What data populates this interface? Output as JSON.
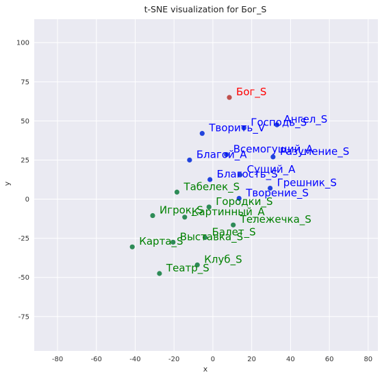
{
  "chart_data": {
    "type": "scatter",
    "title": "t-SNE visualization for Бог_S",
    "xlabel": "x",
    "ylabel": "y",
    "xlim": [
      -92,
      85
    ],
    "ylim": [
      -97,
      115
    ],
    "xticks": [
      -80,
      -60,
      -40,
      -20,
      0,
      20,
      40,
      60,
      80
    ],
    "yticks": [
      -75,
      -50,
      -25,
      0,
      25,
      50,
      75,
      100
    ],
    "grid": true,
    "colors": {
      "target": "#c0504d",
      "target_text": "#ff0000",
      "blue": "#2244dd",
      "blue_text": "#0000ff",
      "green": "#2e8b57",
      "green_text": "#008000",
      "background": "#eaeaf2",
      "grid": "#ffffff"
    },
    "points": [
      {
        "label": "Бог_S",
        "x": 8.5,
        "y": 65,
        "group": "target"
      },
      {
        "label": "Ангел_S",
        "x": 33,
        "y": 47.5,
        "group": "blue"
      },
      {
        "label": "Господь_S",
        "x": 16,
        "y": 45.5,
        "group": "blue"
      },
      {
        "label": "Творить_V",
        "x": -5.5,
        "y": 42,
        "group": "blue"
      },
      {
        "label": "Всемогущий_A",
        "x": 7,
        "y": 28.5,
        "group": "blue"
      },
      {
        "label": "Разумение_S",
        "x": 31,
        "y": 27,
        "group": "blue"
      },
      {
        "label": "Благой_A",
        "x": -12,
        "y": 25,
        "group": "blue"
      },
      {
        "label": "Сущий_A",
        "x": 14,
        "y": 15.5,
        "group": "blue"
      },
      {
        "label": "Благость_S",
        "x": -1.5,
        "y": 12.5,
        "group": "blue"
      },
      {
        "label": "Грешник_S",
        "x": 29.5,
        "y": 7,
        "group": "blue"
      },
      {
        "label": "Творение_S",
        "x": 13.5,
        "y": 0.5,
        "group": "blue"
      },
      {
        "label": "Табелек_S",
        "x": -18.5,
        "y": 4.5,
        "group": "green"
      },
      {
        "label": "Городки_S",
        "x": -2,
        "y": -5,
        "group": "green"
      },
      {
        "label": "Игрок_S",
        "x": -31,
        "y": -10.5,
        "group": "green"
      },
      {
        "label": "Картинный_A",
        "x": -14.5,
        "y": -11.5,
        "group": "green"
      },
      {
        "label": "Тележечка_S",
        "x": 10.5,
        "y": -16.5,
        "group": "green"
      },
      {
        "label": "Балет_S",
        "x": -4,
        "y": -24.5,
        "group": "green"
      },
      {
        "label": "Выставка_S",
        "x": -20.5,
        "y": -27.5,
        "group": "green"
      },
      {
        "label": "Карта_S",
        "x": -41.5,
        "y": -30.5,
        "group": "green"
      },
      {
        "label": "Клуб_S",
        "x": -8,
        "y": -42,
        "group": "green"
      },
      {
        "label": "Театр_S",
        "x": -27.5,
        "y": -47.5,
        "group": "green"
      }
    ]
  }
}
